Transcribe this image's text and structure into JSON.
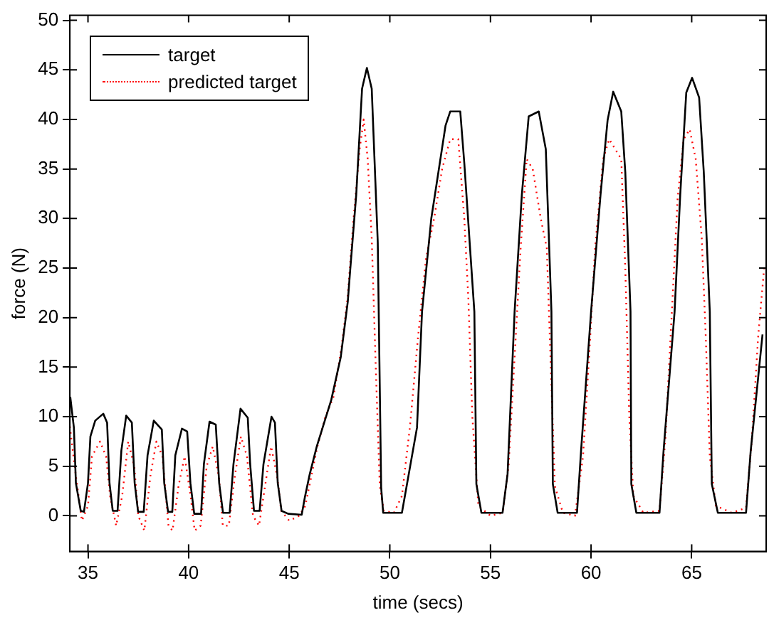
{
  "chart_data": {
    "type": "line",
    "xlabel": "time (secs)",
    "ylabel": "force (N)",
    "xlim": [
      34.1,
      68.7
    ],
    "ylim": [
      -3.6,
      50.5
    ],
    "xticks": [
      35,
      40,
      45,
      50,
      55,
      60,
      65
    ],
    "yticks": [
      0,
      5,
      10,
      15,
      20,
      25,
      30,
      35,
      40,
      45,
      50
    ],
    "grid": false,
    "legend": "top left",
    "marker": "none",
    "series": [
      {
        "name": "target",
        "color": "#000000",
        "line_style": "solid",
        "x": [
          34.12,
          34.3,
          34.4,
          34.64,
          34.8,
          35.0,
          35.12,
          35.36,
          35.76,
          35.95,
          36.07,
          36.23,
          36.47,
          36.66,
          36.9,
          37.18,
          37.32,
          37.49,
          37.77,
          37.96,
          38.27,
          38.67,
          38.79,
          38.98,
          39.19,
          39.34,
          39.67,
          39.93,
          40.09,
          40.28,
          40.62,
          40.76,
          41.04,
          41.35,
          41.52,
          41.71,
          42.04,
          42.23,
          42.58,
          42.94,
          43.06,
          43.25,
          43.53,
          43.72,
          44.12,
          44.29,
          44.43,
          44.62,
          44.95,
          45.62,
          45.78,
          46.02,
          46.37,
          47.09,
          47.56,
          47.91,
          48.03,
          48.33,
          48.62,
          48.86,
          49.1,
          49.4,
          49.57,
          49.67,
          50.6,
          51.35,
          51.6,
          52.06,
          52.77,
          53.0,
          53.5,
          53.7,
          54.2,
          54.3,
          54.55,
          55.6,
          55.85,
          56.2,
          56.56,
          56.9,
          57.4,
          57.75,
          58.03,
          58.1,
          58.34,
          59.3,
          59.5,
          60.0,
          60.47,
          60.82,
          61.1,
          61.5,
          61.7,
          61.96,
          62.0,
          62.25,
          63.4,
          63.6,
          64.15,
          64.43,
          64.73,
          65.02,
          65.37,
          65.6,
          65.9,
          66.0,
          66.3,
          67.7,
          67.93,
          68.52
        ],
        "values": [
          12.0,
          8.9,
          3.3,
          0.5,
          0.4,
          3.3,
          8.0,
          9.6,
          10.3,
          9.4,
          3.3,
          0.5,
          0.5,
          6.6,
          10.1,
          9.4,
          3.3,
          0.4,
          0.4,
          6.1,
          9.6,
          8.7,
          3.3,
          0.4,
          0.4,
          6.1,
          8.8,
          8.5,
          3.3,
          0.2,
          0.2,
          5.2,
          9.5,
          9.2,
          3.3,
          0.3,
          0.3,
          5.2,
          10.8,
          9.9,
          5.2,
          0.5,
          0.5,
          5.2,
          10.0,
          9.4,
          3.3,
          0.5,
          0.2,
          0.1,
          1.9,
          4.2,
          7.0,
          11.7,
          16.0,
          21.6,
          24.8,
          32.4,
          43.1,
          45.2,
          43.1,
          27.6,
          2.8,
          0.3,
          0.3,
          8.9,
          20.6,
          30.0,
          39.4,
          40.8,
          40.8,
          35.6,
          20.6,
          3.2,
          0.3,
          0.3,
          4.2,
          20.6,
          32.4,
          40.3,
          40.8,
          37.0,
          20.6,
          3.2,
          0.3,
          0.3,
          6.5,
          20.6,
          32.4,
          39.9,
          42.8,
          40.8,
          34.7,
          20.6,
          3.2,
          0.3,
          0.3,
          6.5,
          20.6,
          32.4,
          42.7,
          44.2,
          42.2,
          34.7,
          20.6,
          3.2,
          0.3,
          0.3,
          6.5,
          18.3
        ]
      },
      {
        "name": "predicted target",
        "color": "#ff0000",
        "line_style": "dotted",
        "x": [
          34.1,
          34.4,
          34.7,
          35.0,
          35.2,
          35.6,
          35.9,
          36.1,
          36.4,
          36.7,
          37.0,
          37.3,
          37.5,
          37.8,
          38.1,
          38.4,
          38.7,
          39.0,
          39.2,
          39.5,
          39.8,
          40.1,
          40.3,
          40.6,
          40.9,
          41.2,
          41.5,
          41.7,
          42.0,
          42.3,
          42.6,
          42.9,
          43.2,
          43.5,
          43.8,
          44.1,
          44.4,
          44.6,
          45.0,
          45.5,
          45.8,
          46.1,
          46.4,
          46.8,
          47.2,
          47.6,
          47.9,
          48.2,
          48.5,
          48.7,
          48.9,
          49.1,
          49.3,
          49.5,
          49.7,
          50.2,
          50.6,
          51.0,
          51.4,
          51.8,
          52.2,
          52.6,
          53.0,
          53.4,
          53.7,
          53.9,
          54.1,
          54.4,
          55.0,
          55.6,
          55.9,
          56.2,
          56.5,
          56.8,
          57.1,
          57.5,
          57.8,
          58.0,
          58.2,
          58.6,
          59.2,
          59.6,
          59.9,
          60.2,
          60.6,
          60.9,
          61.2,
          61.5,
          61.7,
          61.9,
          62.1,
          62.6,
          63.4,
          63.7,
          64.0,
          64.3,
          64.6,
          64.9,
          65.2,
          65.5,
          65.7,
          65.9,
          66.2,
          67.0,
          67.7,
          68.0,
          68.3,
          68.6
        ],
        "values": [
          9,
          4,
          -0.5,
          1,
          6,
          7.5,
          6,
          2,
          -1,
          2,
          7.5,
          5,
          0,
          -1.5,
          4,
          7.5,
          6,
          -1,
          -1.5,
          3,
          6,
          2,
          -1.5,
          -1,
          5,
          7,
          4,
          -1,
          -1,
          4,
          8,
          6,
          0,
          -1,
          3,
          7,
          4,
          0.5,
          -0.5,
          0,
          1,
          4,
          7,
          10,
          12,
          17,
          22,
          30,
          37,
          40,
          36,
          28,
          15,
          3,
          0.5,
          0.3,
          2,
          9,
          18,
          26,
          30,
          35,
          38,
          38,
          30,
          22,
          10,
          1,
          0,
          0.3,
          5,
          16,
          27,
          36,
          35,
          30,
          27,
          15,
          3,
          0.3,
          0,
          6,
          16,
          27,
          36,
          38,
          37,
          36,
          25,
          10,
          2,
          0.3,
          0.5,
          8,
          20,
          32,
          38,
          39,
          36,
          28,
          18,
          6,
          1,
          0.3,
          0.8,
          8,
          18,
          25
        ]
      }
    ]
  }
}
